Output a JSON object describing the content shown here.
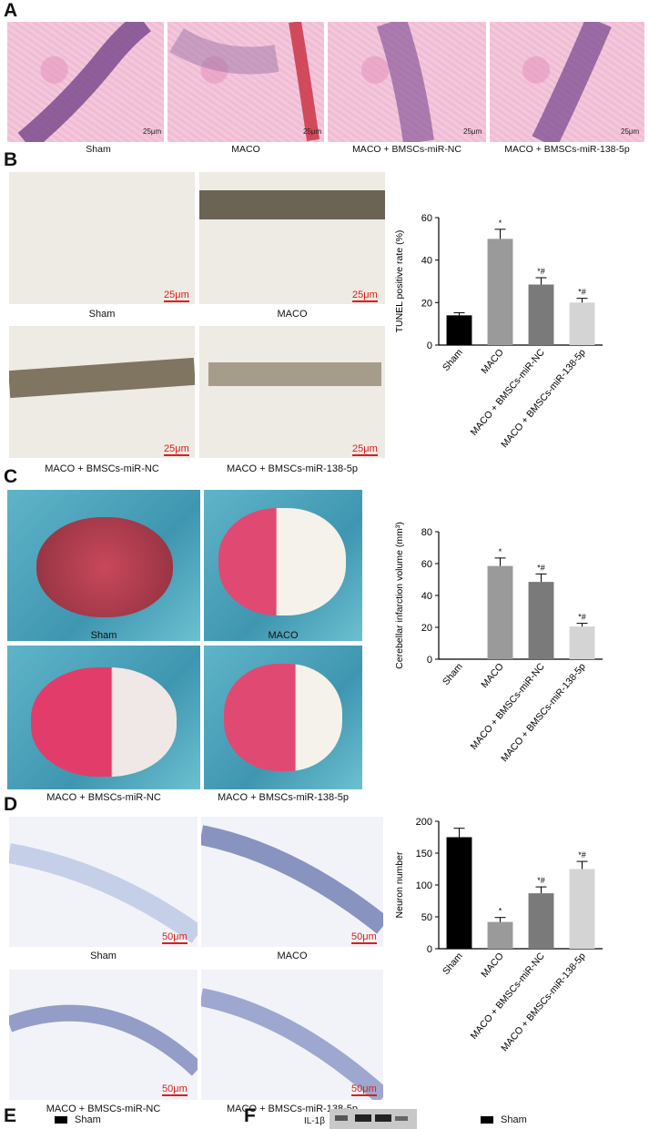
{
  "panels": {
    "A": {
      "letter": "A",
      "captions": [
        "Sham",
        "MACO",
        "MACO + BMSCs-miR-NC",
        "MACO + BMSCs-miR-138-5p"
      ],
      "scale": "25μm"
    },
    "B": {
      "letter": "B",
      "captions": [
        "Sham",
        "MACO",
        "MACO + BMSCs-miR-NC",
        "MACO + BMSCs-miR-138-5p"
      ],
      "scale": "25μm"
    },
    "C": {
      "letter": "C",
      "captions": [
        "Sham",
        "MACO",
        "MACO + BMSCs-miR-NC",
        "MACO + BMSCs-miR-138-5p"
      ]
    },
    "D": {
      "letter": "D",
      "captions": [
        "Sham",
        "MACO",
        "MACO + BMSCs-miR-NC",
        "MACO + BMSCs-miR-138-5p"
      ],
      "scale": "50μm"
    },
    "E": {
      "letter": "E",
      "legend": "Sham"
    },
    "F": {
      "letter": "F",
      "blot_label": "IL-1β",
      "legend": "Sham"
    }
  },
  "colors": {
    "bar_sham": "#000000",
    "bar_maco": "#9a9a9a",
    "bar_nc": "#7a7a7a",
    "bar_138": "#d4d4d4",
    "scale_red": "#d8201a",
    "axis": "#000000"
  },
  "chart_data": [
    {
      "type": "bar",
      "ylabel": "TUNEL positive rate (%)",
      "categories": [
        "Sham",
        "MACO",
        "MACO + BMSCs-miR-NC",
        "MACO + BMSCs-miR-138-5p"
      ],
      "values": [
        14,
        50,
        28.5,
        20
      ],
      "errors": [
        1.2,
        4.5,
        3.2,
        2.0
      ],
      "annotations": [
        "",
        "*",
        "*#",
        "*#"
      ],
      "ylim": [
        0,
        60
      ],
      "yticks": [
        0,
        20,
        40,
        60
      ]
    },
    {
      "type": "bar",
      "ylabel": "Cerebellar infarction volume (mm³)",
      "categories": [
        "Sham",
        "MACO",
        "MACO + BMSCs-miR-NC",
        "MACO + BMSCs-miR-138-5p"
      ],
      "values": [
        0,
        58.5,
        48.5,
        20.5
      ],
      "errors": [
        0,
        5.0,
        5.0,
        2.0
      ],
      "annotations": [
        "",
        "*",
        "*#",
        "*#"
      ],
      "ylim": [
        0,
        80
      ],
      "yticks": [
        0,
        20,
        40,
        60,
        80
      ]
    },
    {
      "type": "bar",
      "ylabel": "Neuron number",
      "categories": [
        "Sham",
        "MACO",
        "MACO + BMSCs-miR-NC",
        "MACO + BMSCs-miR-138-5p"
      ],
      "values": [
        175,
        42,
        87,
        125
      ],
      "errors": [
        14,
        7,
        10,
        12
      ],
      "annotations": [
        "",
        "*",
        "*#",
        "*#"
      ],
      "ylim": [
        0,
        200
      ],
      "yticks": [
        0,
        50,
        100,
        150,
        200
      ]
    }
  ]
}
